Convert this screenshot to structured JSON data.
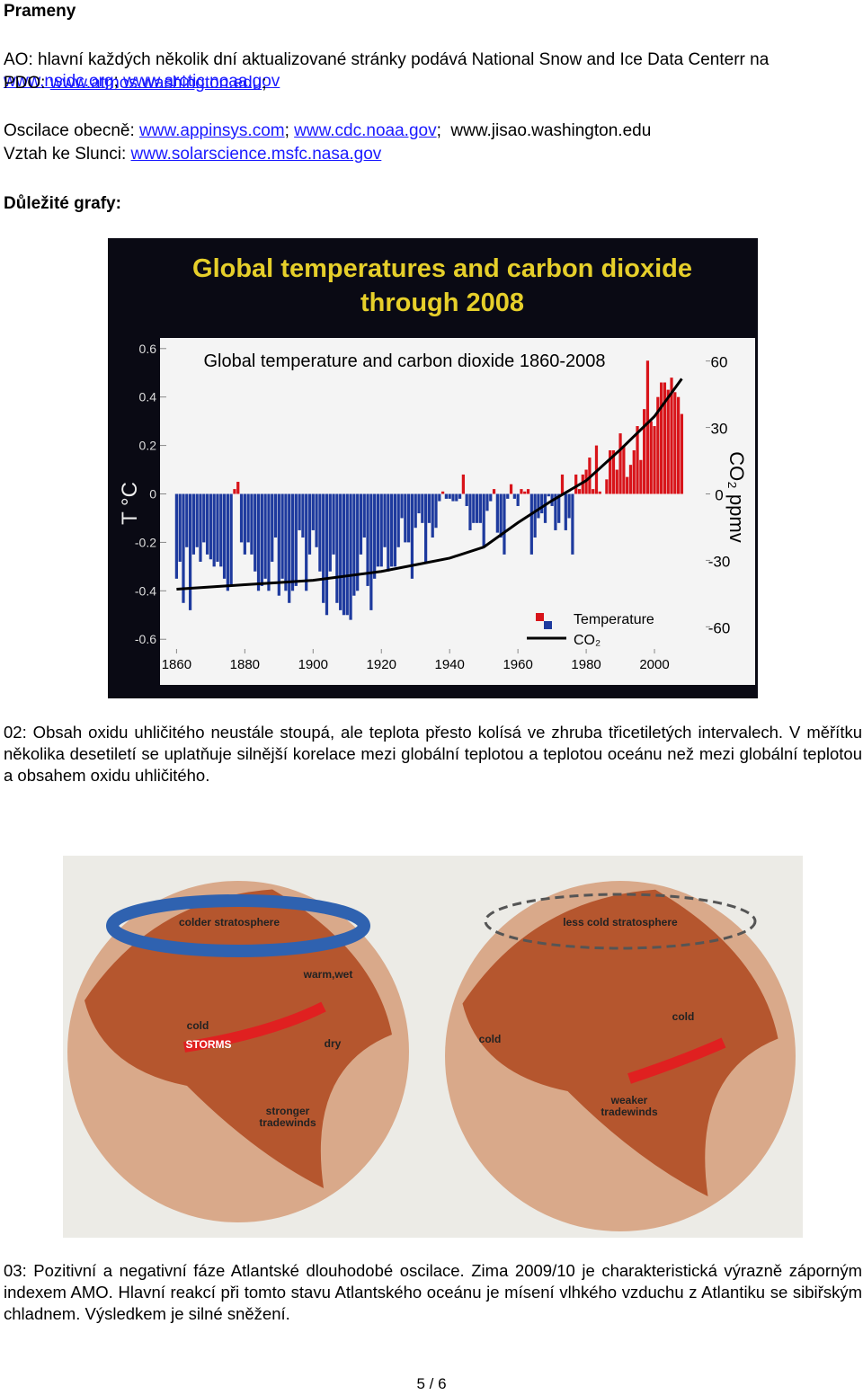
{
  "header": {
    "title": "Prameny"
  },
  "sources": [
    {
      "segments": [
        {
          "text": "AO: hlavní každých několik dní aktualizované stránky podává National Snow and Ice Data Centerr na ",
          "link": false
        },
        {
          "text": "www.nsidc.org",
          "link": true
        },
        {
          "text": "; ",
          "link": false
        },
        {
          "text": "www.arctic.noaa.gov",
          "link": true
        }
      ]
    },
    {
      "segments": [
        {
          "text": "PDO: ",
          "link": false
        },
        {
          "text": "www.atmos.washington.edu",
          "link": true
        },
        {
          "text": ";",
          "link": false
        }
      ]
    },
    {
      "segments": [
        {
          "text": "Oscilace obecně: ",
          "link": false
        },
        {
          "text": "www.appinsys.com",
          "link": true
        },
        {
          "text": "; ",
          "link": false
        },
        {
          "text": "www.cdc.noaa.gov",
          "link": true
        },
        {
          "text": ";  www.jisao.washington.edu",
          "link": false
        }
      ]
    },
    {
      "segments": [
        {
          "text": "Vztah ke Slunci: ",
          "link": false
        },
        {
          "text": "www.solarscience.msfc.nasa.gov",
          "link": true
        }
      ]
    }
  ],
  "section": {
    "title": "Důležité grafy:"
  },
  "chart_data": {
    "type": "bar_line",
    "title_lines": [
      "Global temperatures and carbon dioxide",
      "through 2008"
    ],
    "subtitle": "Global temperature and carbon dioxide 1860-2008",
    "ylabel": "T °C",
    "y2label": "CO₂ ppmv",
    "xlim": [
      1857,
      2015
    ],
    "xticks": [
      1860,
      1880,
      1900,
      1920,
      1940,
      1960,
      1980,
      2000
    ],
    "ylim": [
      -0.64,
      0.64
    ],
    "yticks": [
      0.6,
      0.4,
      0.2,
      0,
      -0.2,
      -0.4,
      -0.6
    ],
    "y2lim": [
      -70,
      70
    ],
    "y2ticks": [
      60,
      30,
      0,
      -30,
      -60
    ],
    "series": [
      {
        "name": "Temperature",
        "color": "#d8141a",
        "negative_color": "#1e3a9e",
        "x": [
          1860,
          1861,
          1862,
          1863,
          1864,
          1865,
          1866,
          1867,
          1868,
          1869,
          1870,
          1871,
          1872,
          1873,
          1874,
          1875,
          1876,
          1877,
          1878,
          1879,
          1880,
          1881,
          1882,
          1883,
          1884,
          1885,
          1886,
          1887,
          1888,
          1889,
          1890,
          1891,
          1892,
          1893,
          1894,
          1895,
          1896,
          1897,
          1898,
          1899,
          1900,
          1901,
          1902,
          1903,
          1904,
          1905,
          1906,
          1907,
          1908,
          1909,
          1910,
          1911,
          1912,
          1913,
          1914,
          1915,
          1916,
          1917,
          1918,
          1919,
          1920,
          1921,
          1922,
          1923,
          1924,
          1925,
          1926,
          1927,
          1928,
          1929,
          1930,
          1931,
          1932,
          1933,
          1934,
          1935,
          1936,
          1937,
          1938,
          1939,
          1940,
          1941,
          1942,
          1943,
          1944,
          1945,
          1946,
          1947,
          1948,
          1949,
          1950,
          1951,
          1952,
          1953,
          1954,
          1955,
          1956,
          1957,
          1958,
          1959,
          1960,
          1961,
          1962,
          1963,
          1964,
          1965,
          1966,
          1967,
          1968,
          1969,
          1970,
          1971,
          1972,
          1973,
          1974,
          1975,
          1976,
          1977,
          1978,
          1979,
          1980,
          1981,
          1982,
          1983,
          1984,
          1985,
          1986,
          1987,
          1988,
          1989,
          1990,
          1991,
          1992,
          1993,
          1994,
          1995,
          1996,
          1997,
          1998,
          1999,
          2000,
          2001,
          2002,
          2003,
          2004,
          2005,
          2006,
          2007,
          2008
        ],
        "values": [
          -0.35,
          -0.28,
          -0.45,
          -0.22,
          -0.48,
          -0.25,
          -0.22,
          -0.28,
          -0.2,
          -0.25,
          -0.27,
          -0.3,
          -0.28,
          -0.3,
          -0.35,
          -0.4,
          -0.38,
          0.02,
          0.05,
          -0.2,
          -0.25,
          -0.2,
          -0.25,
          -0.32,
          -0.4,
          -0.38,
          -0.35,
          -0.4,
          -0.28,
          -0.18,
          -0.42,
          -0.35,
          -0.4,
          -0.45,
          -0.4,
          -0.38,
          -0.15,
          -0.18,
          -0.4,
          -0.25,
          -0.15,
          -0.22,
          -0.32,
          -0.45,
          -0.5,
          -0.32,
          -0.25,
          -0.45,
          -0.48,
          -0.5,
          -0.5,
          -0.52,
          -0.42,
          -0.4,
          -0.25,
          -0.18,
          -0.38,
          -0.48,
          -0.35,
          -0.3,
          -0.3,
          -0.22,
          -0.32,
          -0.3,
          -0.3,
          -0.22,
          -0.1,
          -0.2,
          -0.2,
          -0.35,
          -0.14,
          -0.08,
          -0.12,
          -0.28,
          -0.12,
          -0.18,
          -0.14,
          -0.03,
          0.01,
          -0.02,
          -0.02,
          -0.03,
          -0.03,
          -0.02,
          0.08,
          -0.05,
          -0.15,
          -0.12,
          -0.12,
          -0.12,
          -0.22,
          -0.07,
          -0.03,
          0.02,
          -0.16,
          -0.18,
          -0.25,
          -0.02,
          0.04,
          -0.02,
          -0.05,
          0.02,
          0.01,
          0.02,
          -0.25,
          -0.18,
          -0.1,
          -0.08,
          -0.12,
          -0.01,
          -0.05,
          -0.15,
          -0.12,
          0.08,
          -0.15,
          -0.1,
          -0.25,
          0.08,
          0.02,
          0.08,
          0.1,
          0.15,
          0.02,
          0.2,
          0.01,
          0.0,
          0.06,
          0.18,
          0.18,
          0.1,
          0.25,
          0.2,
          0.07,
          0.12,
          0.18,
          0.28,
          0.14,
          0.35,
          0.55,
          0.3,
          0.28,
          0.4,
          0.46,
          0.46,
          0.43,
          0.48,
          0.42,
          0.4,
          0.33
        ]
      },
      {
        "name": "CO₂",
        "color": "#000000",
        "axis": "y2",
        "x": [
          1860,
          1870,
          1880,
          1890,
          1900,
          1910,
          1920,
          1930,
          1940,
          1950,
          1960,
          1970,
          1980,
          1990,
          2000,
          2008
        ],
        "values": [
          -43,
          -42,
          -41,
          -40,
          -39,
          -37,
          -35,
          -32,
          -29,
          -24,
          -13,
          -3,
          6,
          20,
          35,
          52
        ]
      }
    ]
  },
  "caption1": "02: Obsah oxidu uhličitého neustále stoupá, ale teplota přesto kolísá ve zhruba třicetiletých intervalech. V měřítku několika desetiletí se uplatňuje silnější korelace mezi globální teplotou a teplotou oceánu než mezi globální teplotou a obsahem oxidu uhličitého.",
  "figure2": {
    "labels": [
      [
        "colder stratosphere"
      ],
      [
        "warm,wet"
      ],
      [
        "cold"
      ],
      [
        "STORMS"
      ],
      [
        "dry"
      ],
      [
        "stronger",
        "tradewinds"
      ],
      [
        "less cold stratosphere"
      ],
      [
        "cold"
      ],
      [
        "cold"
      ],
      [
        "weaker",
        "tradewinds"
      ]
    ]
  },
  "caption2": "03: Pozitivní a negativní fáze Atlantské dlouhodobé oscilace. Zima 2009/10 je charakteristická výrazně záporným indexem AMO. Hlavní reakcí při tomto stavu Atlantského oceánu je mísení vlhkého vzduchu z Atlantiku se sibiřským chladnem. Výsledkem je silné sněžení.",
  "footer": {
    "page": "5 / 6"
  }
}
